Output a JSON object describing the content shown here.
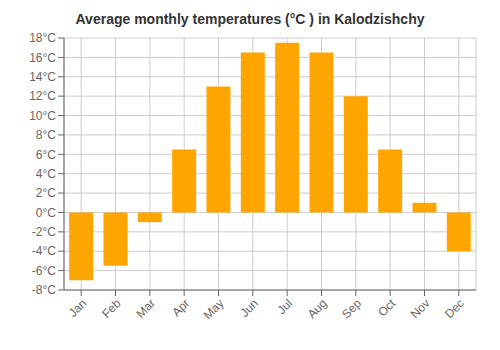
{
  "chart_data": {
    "type": "bar",
    "title": "Average monthly temperatures (°C ) in Kalodzishchy",
    "categories": [
      "Jan",
      "Feb",
      "Mar",
      "Apr",
      "May",
      "Jun",
      "Jul",
      "Aug",
      "Sep",
      "Oct",
      "Nov",
      "Dec"
    ],
    "values": [
      -7.0,
      -5.5,
      -1.0,
      6.5,
      13.0,
      16.5,
      17.5,
      16.5,
      12.0,
      6.5,
      1.0,
      -4.0
    ],
    "color": "#FFA500",
    "ylim": [
      -8,
      18
    ],
    "yticks": [
      {
        "value": -8,
        "label": "-8°C"
      },
      {
        "value": -6,
        "label": "-6°C"
      },
      {
        "value": -4,
        "label": "-4°C"
      },
      {
        "value": -2,
        "label": "-2°C"
      },
      {
        "value": 0,
        "label": "0°C"
      },
      {
        "value": 2,
        "label": "2°C"
      },
      {
        "value": 4,
        "label": "4°C"
      },
      {
        "value": 6,
        "label": "6°C"
      },
      {
        "value": 8,
        "label": "8°C"
      },
      {
        "value": 10,
        "label": "10°C"
      },
      {
        "value": 12,
        "label": "12°C"
      },
      {
        "value": 14,
        "label": "14°C"
      },
      {
        "value": 16,
        "label": "16°C"
      },
      {
        "value": 18,
        "label": "18°C"
      }
    ],
    "grid": true
  }
}
